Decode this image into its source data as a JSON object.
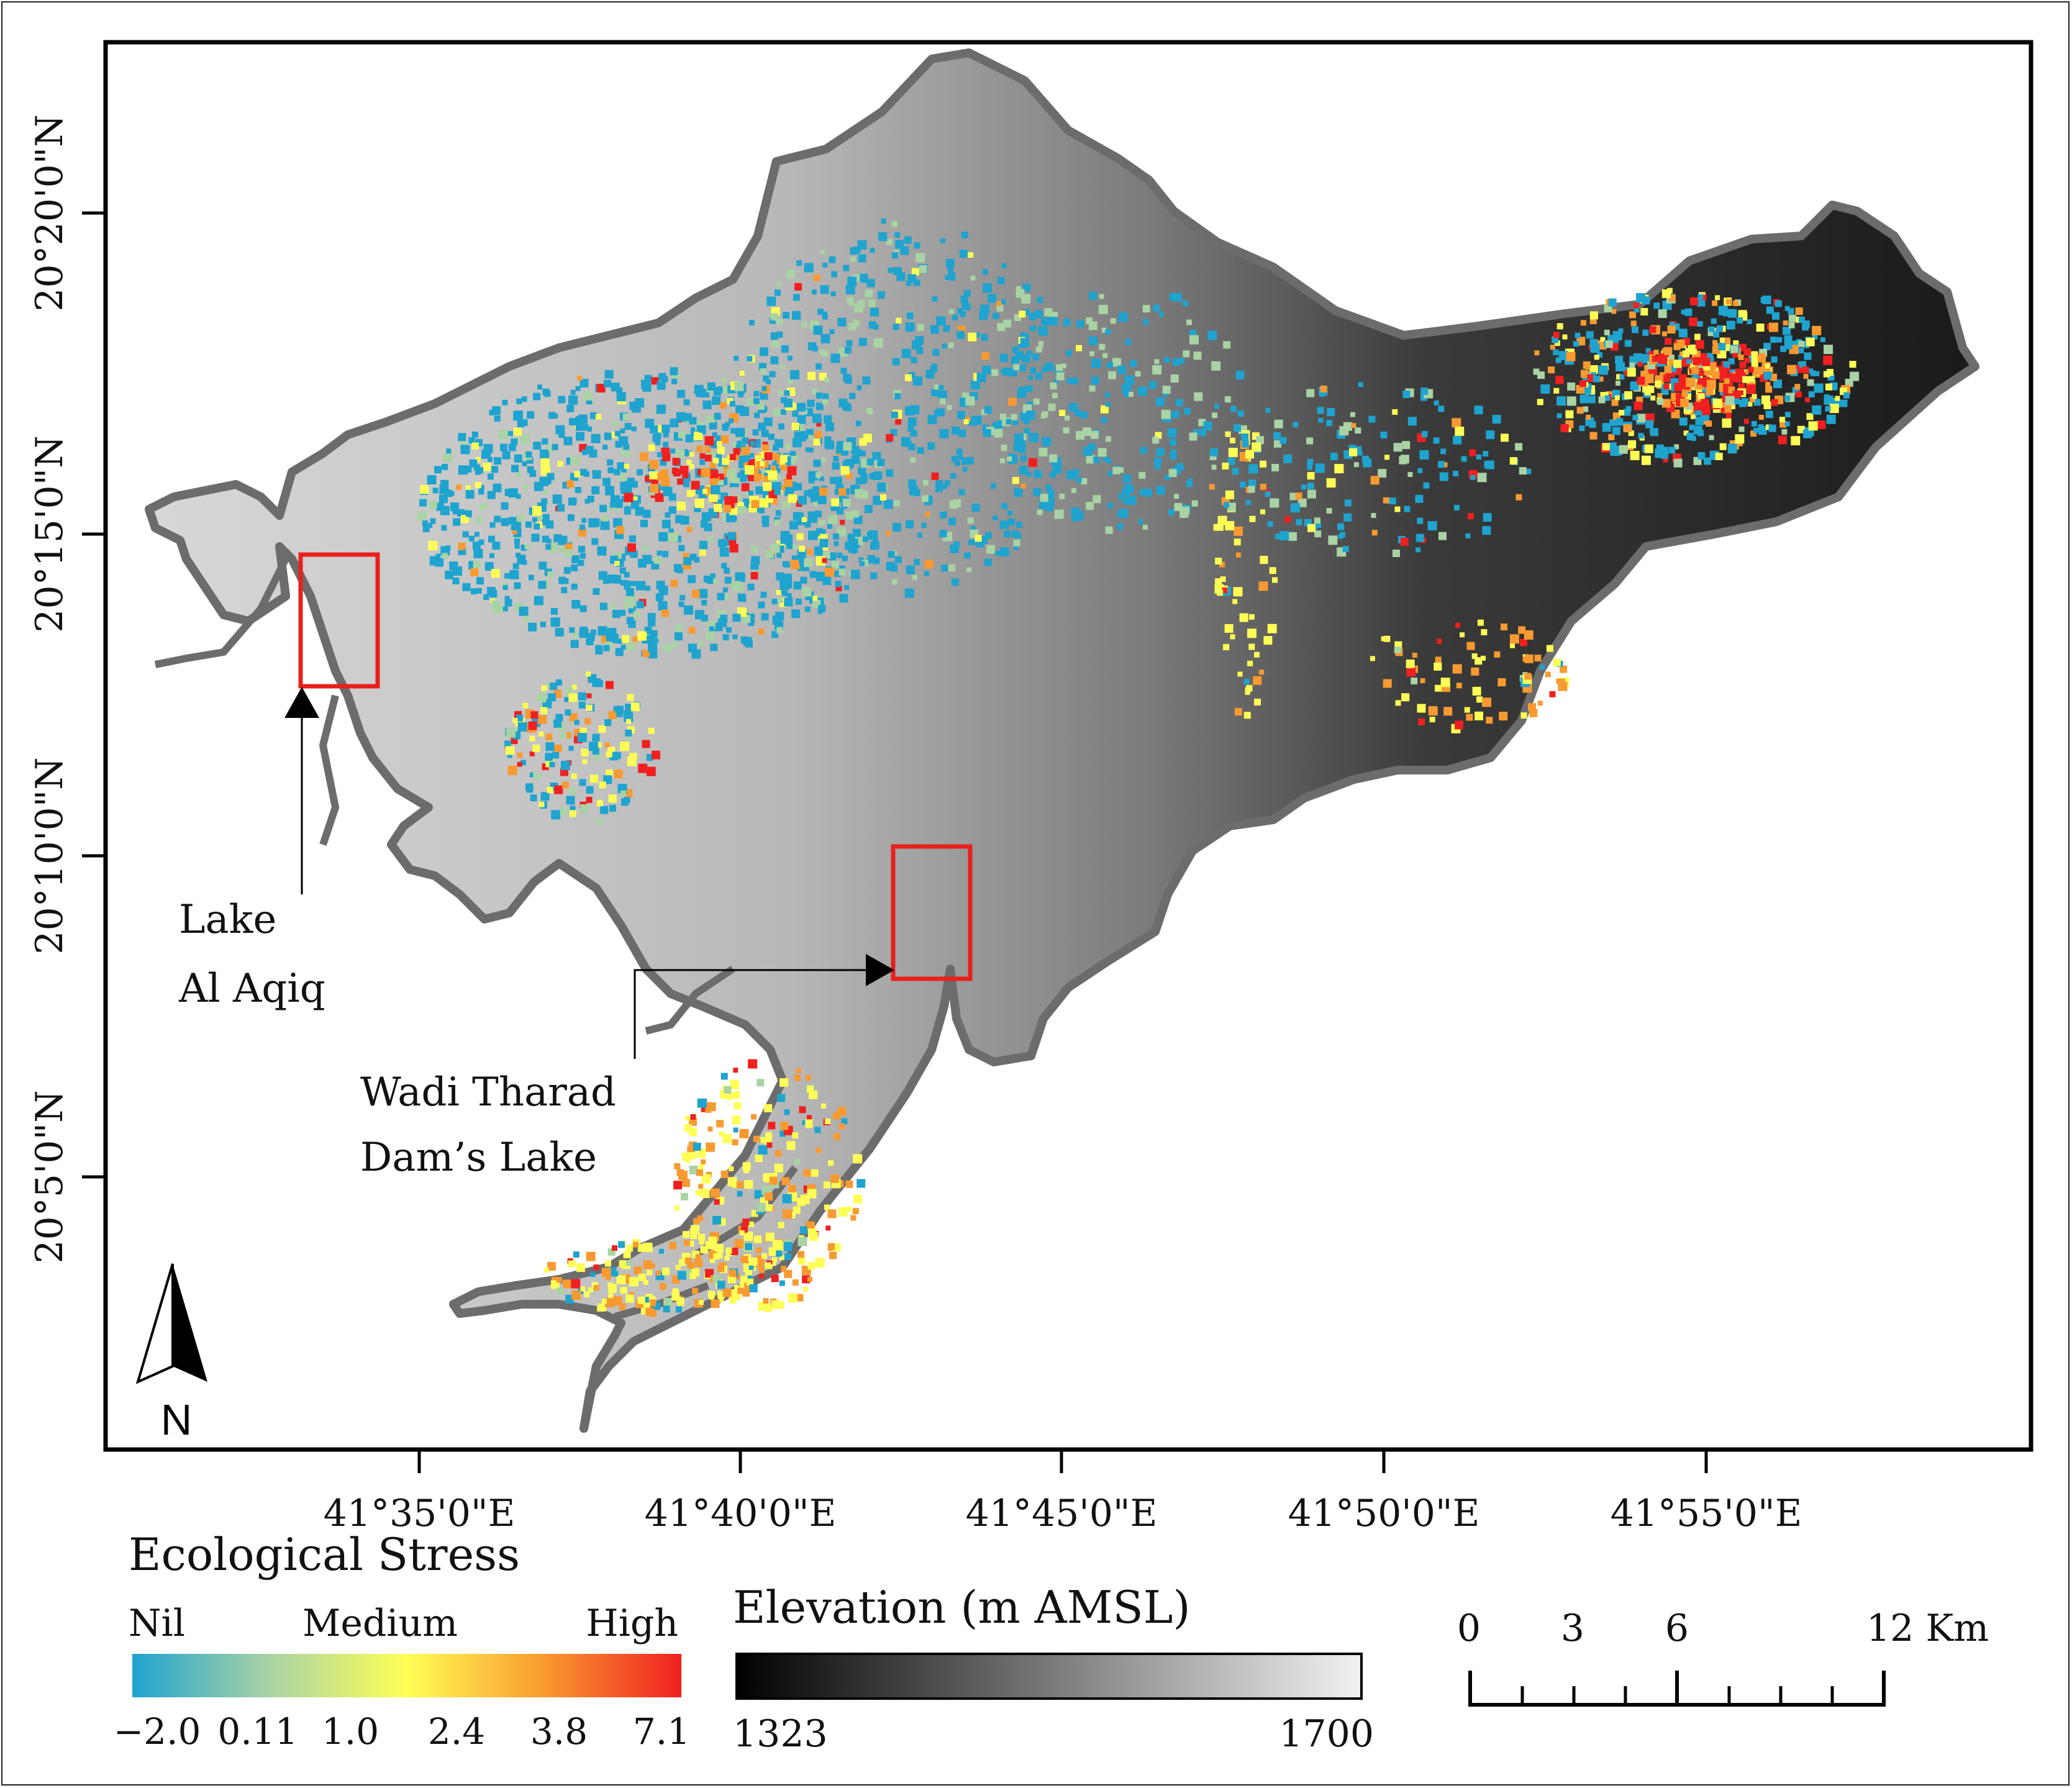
{
  "map": {
    "lat_labels": [
      "20°20'0\"N",
      "20°15'0\"N",
      "20°10'0\"N",
      "20°5'0\"N"
    ],
    "lon_labels": [
      "41°35'0\"E",
      "41°40'0\"E",
      "41°45'0\"E",
      "41°50'0\"E",
      "41°55'0\"E"
    ],
    "annotations": {
      "lake1_line1": "Lake",
      "lake1_line2": "Al Aqiq",
      "lake2_line1": "Wadi Tharad",
      "lake2_line2": "Dam’s Lake"
    },
    "north_arrow": "N",
    "highlight_color": "#e8201c"
  },
  "stress_legend": {
    "title": "Ecological Stress",
    "class_labels": [
      "Nil",
      "Medium",
      "High"
    ],
    "ticks": [
      "−2.0",
      "0.11",
      "1.0",
      "2.4",
      "3.8",
      "7.1"
    ],
    "colors": [
      "#1fa3cf",
      "#a9d3a4",
      "#ffff55",
      "#f89a30",
      "#f02020"
    ]
  },
  "elevation_legend": {
    "title": "Elevation (m AMSL)",
    "min": "1323",
    "max": "1700",
    "colors": [
      "#000000",
      "#f2f2f2"
    ]
  },
  "scale_bar": {
    "labels": [
      "0",
      "3",
      "6",
      "12 Km"
    ]
  }
}
